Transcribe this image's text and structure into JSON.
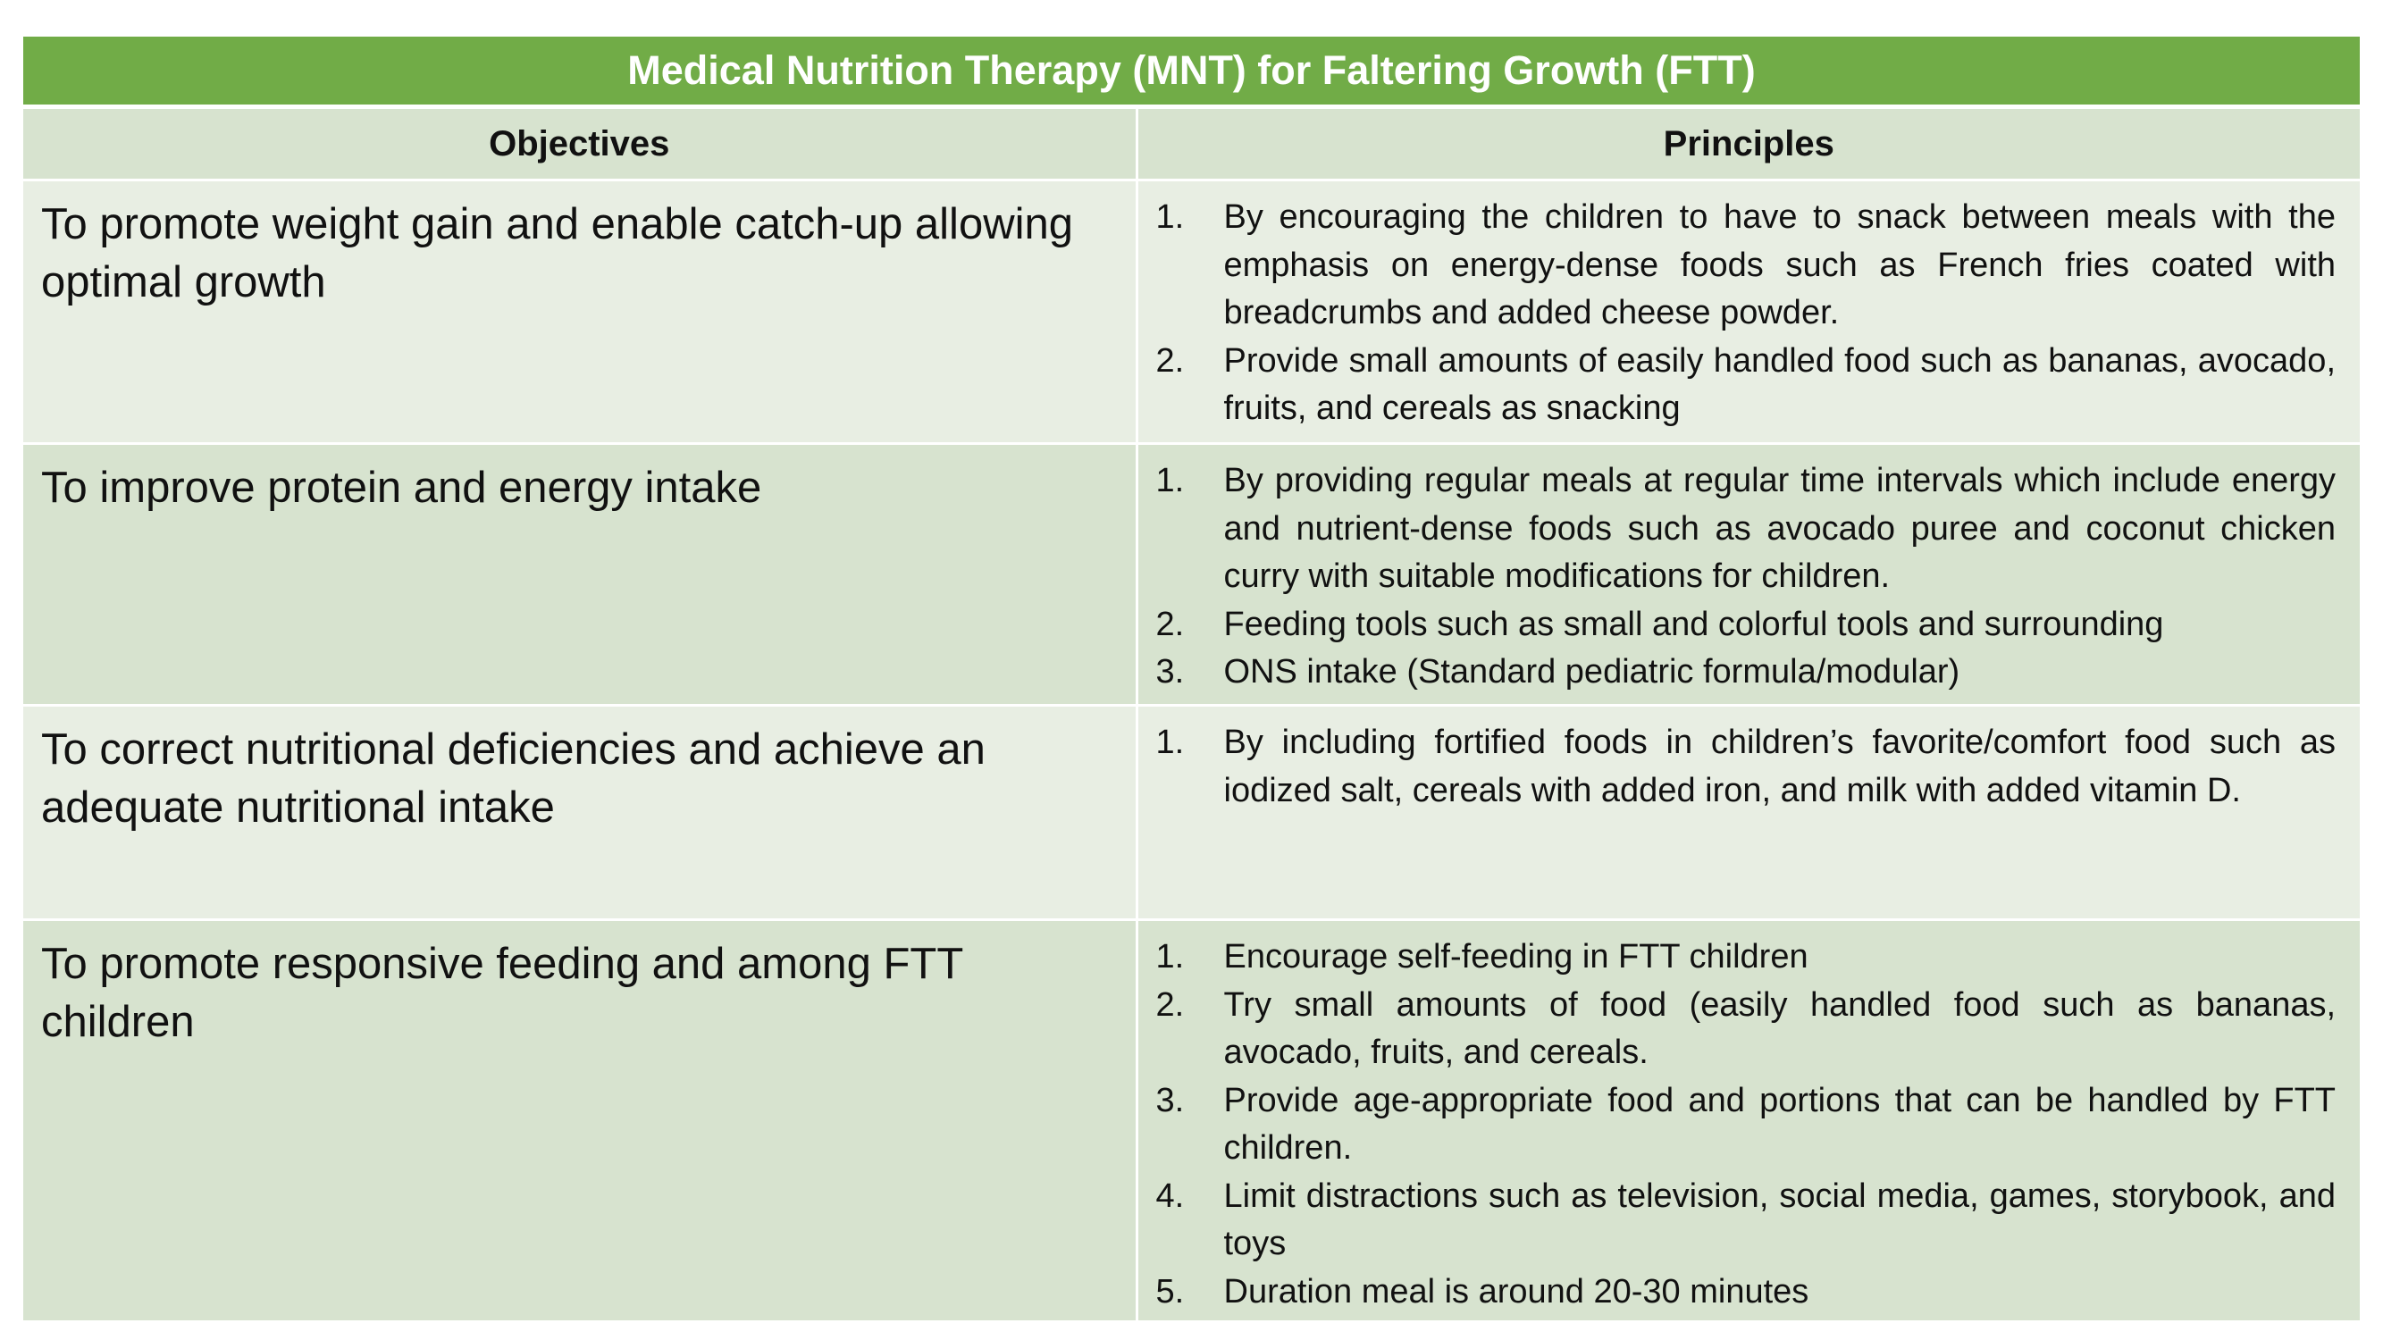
{
  "title": "Medical Nutrition Therapy (MNT) for Faltering Growth (FTT)",
  "headers": {
    "objectives": "Objectives",
    "principles": "Principles"
  },
  "rows": [
    {
      "objective": "To promote weight gain and enable catch-up allowing optimal growth",
      "principles": [
        {
          "num": "1.",
          "text": "By encouraging the children to have to snack between meals with the emphasis on energy-dense foods such as French fries coated with breadcrumbs and added cheese powder."
        },
        {
          "num": "2.",
          "text": "Provide small amounts of easily handled food such as bananas, avocado, fruits, and cereals as snacking"
        }
      ]
    },
    {
      "objective": "To improve protein and energy intake",
      "principles": [
        {
          "num": "1.",
          "text": "By providing regular meals at regular time intervals which include energy and nutrient-dense foods such as avocado puree and coconut chicken curry with suitable modifications for children."
        },
        {
          "num": "2.",
          "text": "Feeding tools such as small and colorful tools and surrounding"
        },
        {
          "num": "3.",
          "text": "ONS intake (Standard pediatric formula/modular)"
        }
      ]
    },
    {
      "objective": "To correct nutritional deficiencies and achieve an adequate nutritional intake",
      "principles": [
        {
          "num": "1.",
          "text": "By including fortified foods in children’s favorite/comfort food such as iodized salt, cereals with added iron, and milk with added vitamin D."
        }
      ]
    },
    {
      "objective": "To promote responsive feeding and among FTT children",
      "principles": [
        {
          "num": "1.",
          "text": "Encourage self-feeding in FTT children"
        },
        {
          "num": "2.",
          "text": "Try small amounts of food (easily handled food such as bananas, avocado, fruits, and cereals."
        },
        {
          "num": "3.",
          "text": "Provide age-appropriate food and portions that can be handled by FTT children."
        },
        {
          "num": "4.",
          "text": "Limit distractions such as television, social media, games, storybook, and toys"
        },
        {
          "num": "5.",
          "text": "Duration meal is around 20-30 minutes"
        }
      ]
    }
  ],
  "colors": {
    "title_bg": "#71ac47",
    "title_text": "#ffffff",
    "row_dark": "#d7e3cf",
    "row_light": "#e8eee3"
  }
}
